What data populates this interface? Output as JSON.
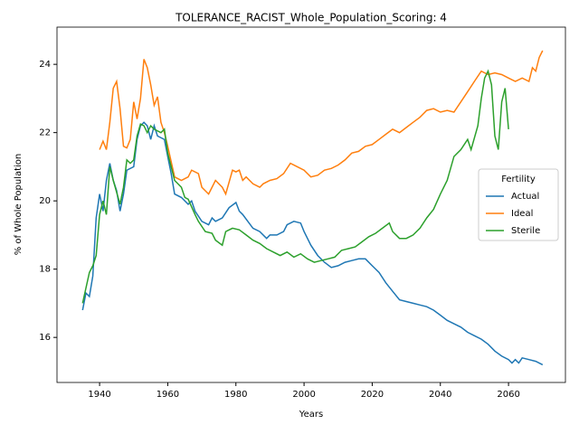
{
  "chart_data": {
    "type": "line",
    "title": "TOLERANCE_RACIST_Whole_Population_Scoring: 4",
    "x_label": "Years",
    "y_label": "% of Whole Population",
    "xlim": [
      1927.5,
      2076.7
    ],
    "ylim": [
      14.68,
      25.09
    ],
    "xticks": [
      1940,
      1960,
      1980,
      2000,
      2020,
      2040,
      2060
    ],
    "yticks": [
      16,
      18,
      20,
      22,
      24
    ],
    "grid": false,
    "legend_title": "Fertility",
    "legend_position": "center right",
    "series": [
      {
        "name": "Actual",
        "color": "#1f77b4",
        "x": [
          1935,
          1936,
          1937,
          1938,
          1939,
          1940,
          1941,
          1942,
          1943,
          1944,
          1945,
          1946,
          1947,
          1948,
          1950,
          1951,
          1952,
          1953,
          1954,
          1955,
          1956,
          1957,
          1959,
          1960,
          1961,
          1962,
          1964,
          1966,
          1967,
          1968,
          1970,
          1972,
          1973,
          1974,
          1976,
          1978,
          1980,
          1981,
          1982,
          1985,
          1987,
          1989,
          1990,
          1992,
          1994,
          1995,
          1997,
          1999,
          2000,
          2002,
          2004,
          2006,
          2008,
          2010,
          2012,
          2014,
          2016,
          2018,
          2020,
          2022,
          2024,
          2026,
          2028,
          2030,
          2032,
          2034,
          2036,
          2038,
          2040,
          2042,
          2044,
          2046,
          2048,
          2050,
          2052,
          2054,
          2056,
          2058,
          2060,
          2061,
          2062,
          2063,
          2064,
          2066,
          2068,
          2070
        ],
        "values": [
          16.8,
          17.3,
          17.2,
          17.8,
          19.5,
          20.2,
          19.7,
          20.6,
          21.1,
          20.6,
          20.3,
          19.7,
          20.2,
          20.9,
          21.0,
          21.8,
          22.2,
          22.3,
          22.2,
          21.8,
          22.2,
          21.9,
          21.8,
          21.3,
          20.8,
          20.2,
          20.1,
          19.9,
          20.0,
          19.7,
          19.4,
          19.3,
          19.5,
          19.4,
          19.5,
          19.8,
          19.95,
          19.7,
          19.6,
          19.2,
          19.1,
          18.9,
          19.0,
          19.0,
          19.1,
          19.3,
          19.4,
          19.35,
          19.1,
          18.7,
          18.4,
          18.2,
          18.05,
          18.1,
          18.2,
          18.25,
          18.3,
          18.3,
          18.1,
          17.9,
          17.6,
          17.35,
          17.1,
          17.05,
          17.0,
          16.95,
          16.9,
          16.8,
          16.65,
          16.5,
          16.4,
          16.3,
          16.15,
          16.05,
          15.95,
          15.8,
          15.6,
          15.45,
          15.35,
          15.25,
          15.35,
          15.25,
          15.4,
          15.35,
          15.3,
          15.2
        ]
      },
      {
        "name": "Ideal",
        "color": "#ff7f0e",
        "x": [
          1940,
          1941,
          1942,
          1943,
          1944,
          1945,
          1946,
          1947,
          1948,
          1949,
          1950,
          1951,
          1952,
          1953,
          1954,
          1955,
          1956,
          1957,
          1958,
          1959,
          1960,
          1962,
          1964,
          1966,
          1967,
          1969,
          1970,
          1972,
          1974,
          1976,
          1977,
          1979,
          1980,
          1981,
          1982,
          1983,
          1985,
          1987,
          1988,
          1990,
          1992,
          1994,
          1996,
          1998,
          2000,
          2002,
          2004,
          2006,
          2008,
          2010,
          2012,
          2014,
          2016,
          2018,
          2020,
          2022,
          2024,
          2026,
          2028,
          2030,
          2032,
          2034,
          2036,
          2038,
          2040,
          2042,
          2044,
          2046,
          2048,
          2050,
          2052,
          2054,
          2056,
          2058,
          2060,
          2062,
          2064,
          2066,
          2067,
          2068,
          2069,
          2070
        ],
        "values": [
          21.5,
          21.75,
          21.5,
          22.3,
          23.3,
          23.5,
          22.7,
          21.6,
          21.55,
          21.8,
          22.9,
          22.4,
          23.0,
          24.15,
          23.9,
          23.4,
          22.8,
          23.05,
          22.3,
          22.0,
          21.6,
          20.7,
          20.6,
          20.7,
          20.9,
          20.8,
          20.4,
          20.2,
          20.6,
          20.4,
          20.2,
          20.9,
          20.85,
          20.9,
          20.6,
          20.7,
          20.5,
          20.4,
          20.5,
          20.6,
          20.65,
          20.8,
          21.1,
          21.0,
          20.9,
          20.7,
          20.75,
          20.9,
          20.95,
          21.05,
          21.2,
          21.4,
          21.45,
          21.6,
          21.65,
          21.8,
          21.95,
          22.1,
          22.0,
          22.15,
          22.3,
          22.45,
          22.65,
          22.7,
          22.6,
          22.65,
          22.6,
          22.9,
          23.2,
          23.5,
          23.8,
          23.7,
          23.75,
          23.7,
          23.6,
          23.5,
          23.6,
          23.5,
          23.9,
          23.8,
          24.2,
          24.4
        ]
      },
      {
        "name": "Sterile",
        "color": "#2ca02c",
        "x": [
          1935,
          1937,
          1938,
          1939,
          1940,
          1941,
          1942,
          1943,
          1944,
          1946,
          1947,
          1948,
          1949,
          1950,
          1951,
          1952,
          1953,
          1954,
          1955,
          1956,
          1958,
          1959,
          1960,
          1962,
          1964,
          1965,
          1966,
          1968,
          1969,
          1971,
          1973,
          1974,
          1976,
          1977,
          1979,
          1981,
          1983,
          1985,
          1987,
          1989,
          1991,
          1993,
          1995,
          1997,
          1999,
          2001,
          2003,
          2005,
          2007,
          2009,
          2011,
          2013,
          2015,
          2017,
          2019,
          2021,
          2023,
          2025,
          2026,
          2028,
          2030,
          2032,
          2034,
          2036,
          2038,
          2040,
          2042,
          2044,
          2046,
          2048,
          2049,
          2051,
          2052,
          2053,
          2054,
          2055,
          2056,
          2057,
          2058,
          2059,
          2060
        ],
        "values": [
          17.0,
          17.9,
          18.1,
          18.4,
          19.6,
          20.0,
          19.6,
          21.0,
          20.6,
          19.9,
          20.4,
          21.2,
          21.1,
          21.2,
          21.9,
          22.25,
          22.2,
          22.0,
          22.2,
          22.1,
          22.0,
          22.1,
          21.4,
          20.6,
          20.4,
          20.1,
          20.05,
          19.6,
          19.4,
          19.1,
          19.05,
          18.85,
          18.7,
          19.1,
          19.2,
          19.15,
          19.0,
          18.85,
          18.75,
          18.6,
          18.5,
          18.4,
          18.5,
          18.35,
          18.45,
          18.3,
          18.2,
          18.25,
          18.3,
          18.35,
          18.55,
          18.6,
          18.65,
          18.8,
          18.95,
          19.05,
          19.2,
          19.35,
          19.1,
          18.9,
          18.9,
          19.0,
          19.2,
          19.5,
          19.75,
          20.2,
          20.6,
          21.3,
          21.5,
          21.8,
          21.5,
          22.2,
          23.0,
          23.6,
          23.8,
          23.4,
          21.9,
          21.5,
          22.9,
          23.3,
          22.1
        ]
      }
    ]
  }
}
